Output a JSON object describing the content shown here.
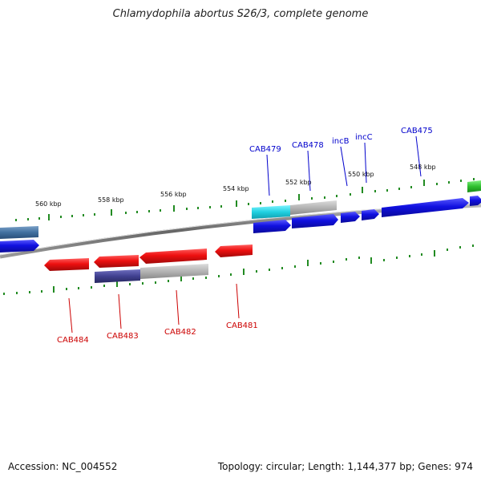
{
  "title": "Chlamydophila abortus S26/3, complete genome",
  "footer": {
    "accession": "Accession: NC_004552",
    "stats": "Topology: circular; Length: 1,144,377 bp; Genes: 974"
  },
  "colors": {
    "forward_gene": "#1010e0",
    "reverse_gene": "#e01010",
    "backbone": "#777777",
    "ticks": "#228b22",
    "cyan_gene": "#20d0e0",
    "grey_gene": "#b0b0b0",
    "purple_gene": "#404090",
    "green_gene": "#30c030",
    "steel_gene": "#4070a0"
  },
  "scale_labels": [
    "560 kbp",
    "558 kbp",
    "556 kbp",
    "554 kbp",
    "552 kbp",
    "550 kbp",
    "548 kbp"
  ],
  "forward_labels": [
    "CAB479",
    "CAB478",
    "incB",
    "incC",
    "CAB475"
  ],
  "reverse_labels": [
    "CAB484",
    "CAB483",
    "CAB482",
    "CAB481"
  ]
}
